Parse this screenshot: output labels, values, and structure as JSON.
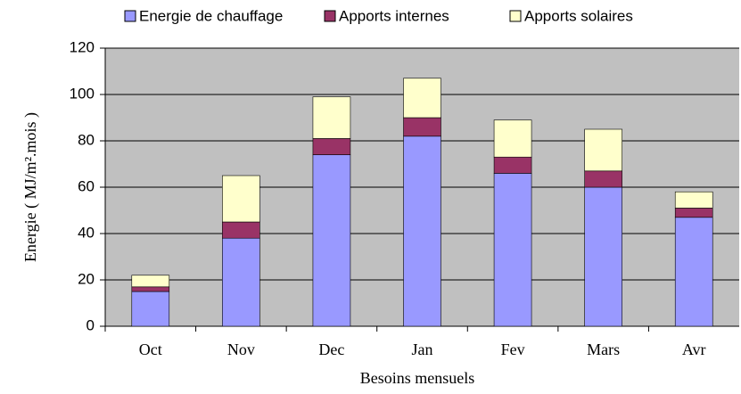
{
  "chart_data": {
    "type": "stacked_bar",
    "x_label": "Besoins mensuels",
    "y_label": "Energie ( MJ/m².mois )",
    "categories": [
      "Oct",
      "Nov",
      "Dec",
      "Jan",
      "Fev",
      "Mars",
      "Avr"
    ],
    "series": [
      {
        "name": "Energie de chauffage",
        "color": "#9999ff",
        "values": [
          15,
          38,
          74,
          82,
          66,
          60,
          47
        ]
      },
      {
        "name": "Apports internes",
        "color": "#993366",
        "values": [
          2,
          7,
          7,
          8,
          7,
          7,
          4
        ]
      },
      {
        "name": "Apports solaires",
        "color": "#ffffcc",
        "values": [
          5,
          20,
          18,
          17,
          16,
          18,
          7
        ]
      }
    ],
    "ylim": [
      0,
      120
    ],
    "yticks": [
      0,
      20,
      40,
      60,
      80,
      100,
      120
    ],
    "grid": true,
    "plot_background": "#c0c0c0",
    "legend": "top"
  }
}
